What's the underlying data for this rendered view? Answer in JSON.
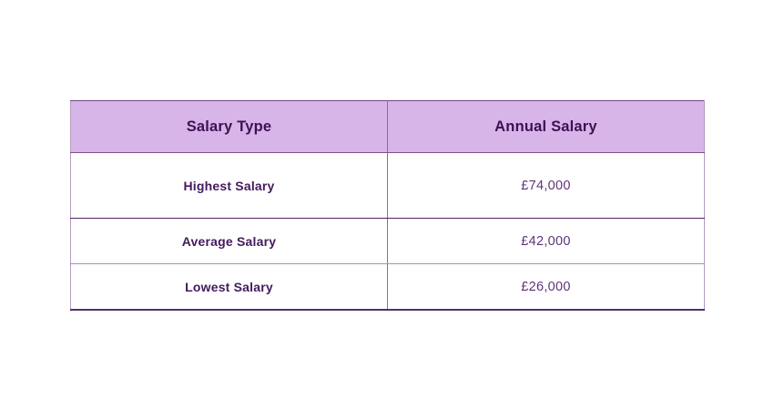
{
  "table": {
    "headers": [
      "Salary Type",
      "Annual Salary"
    ],
    "rows": [
      {
        "label": "Highest Salary",
        "value": "£74,000"
      },
      {
        "label": "Average Salary",
        "value": "£42,000"
      },
      {
        "label": "Lowest Salary",
        "value": "£26,000"
      }
    ]
  },
  "colors": {
    "header_background": "#d8b5e9",
    "header_text": "#3d1152",
    "row_label_text": "#431a5e",
    "row_value_text": "#5e3478",
    "border_outer_top": "#6e4a80",
    "border_outer_sides": "#b69cc3",
    "border_outer_bottom": "#543063",
    "border_header_bottom": "#7b5589",
    "border_row1_bottom": "#4e2462",
    "border_row2_bottom": "#ac90bb",
    "border_column_divider": "#8d6b9d",
    "page_background": "#ffffff"
  },
  "chart_data": {
    "type": "table",
    "title": "",
    "columns": [
      "Salary Type",
      "Annual Salary"
    ],
    "rows": [
      [
        "Highest Salary",
        "£74,000"
      ],
      [
        "Average Salary",
        "£42,000"
      ],
      [
        "Lowest Salary",
        "£26,000"
      ]
    ],
    "numeric_values": {
      "highest": 74000,
      "average": 42000,
      "lowest": 26000
    },
    "currency_symbol": "£"
  }
}
